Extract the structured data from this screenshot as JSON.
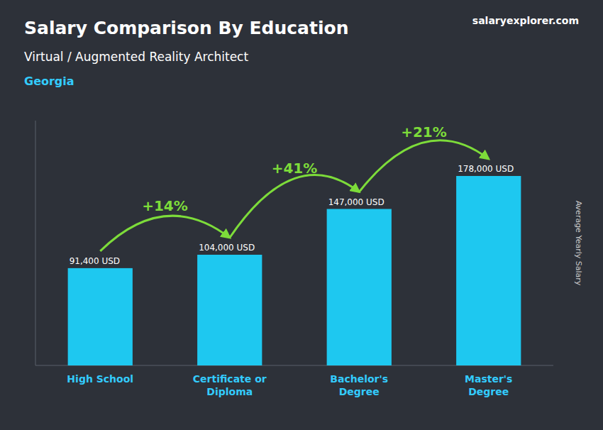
{
  "chart_data": {
    "type": "bar",
    "title": "Salary Comparison By Education",
    "subtitle": "Virtual / Augmented Reality Architect",
    "location": "Georgia",
    "watermark": "salaryexplorer.com",
    "ylabel": "Average Yearly Salary",
    "categories": [
      "High School",
      "Certificate or\nDiploma",
      "Bachelor's\nDegree",
      "Master's\nDegree"
    ],
    "values": [
      91400,
      104000,
      147000,
      178000
    ],
    "value_labels": [
      "91,400 USD",
      "104,000 USD",
      "147,000 USD",
      "178,000 USD"
    ],
    "annotations": [
      "+14%",
      "+41%",
      "+21%"
    ],
    "color": "#1EC8F0",
    "ylim": [
      0,
      230000
    ],
    "grid": false,
    "data_labels": true,
    "tick_labels": "x"
  }
}
